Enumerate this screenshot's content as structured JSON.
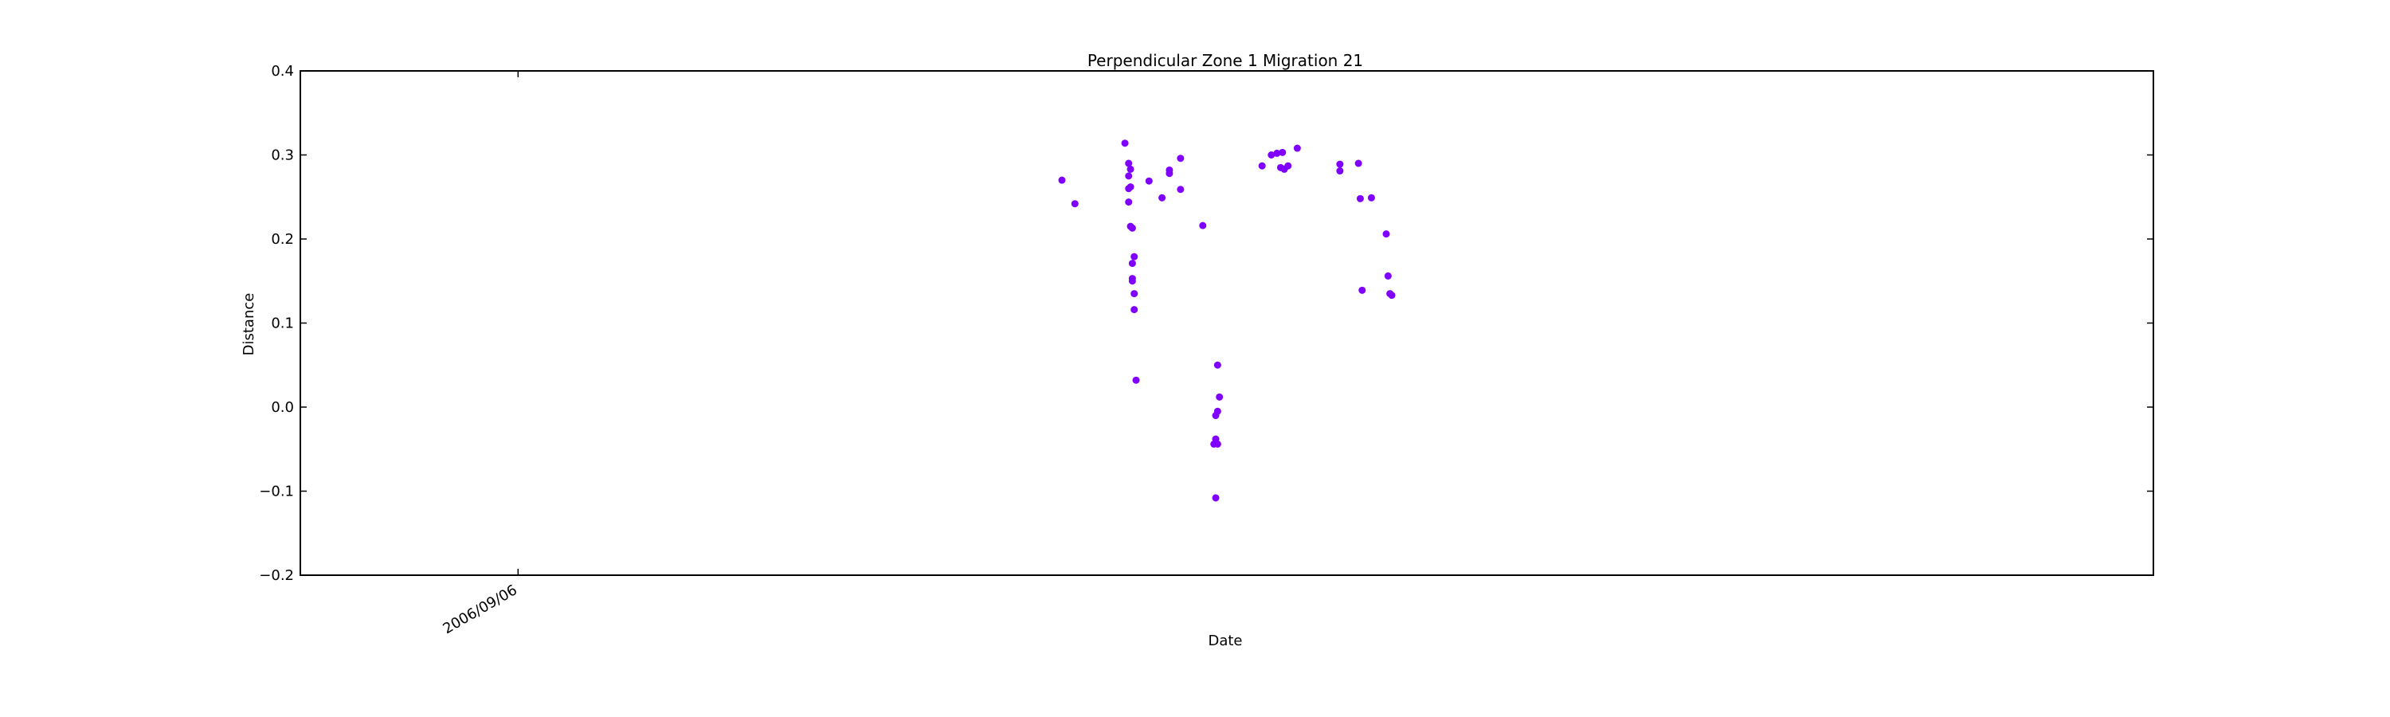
{
  "chart_data": {
    "type": "scatter",
    "title": "Perpendicular Zone 1 Migration 21",
    "xlabel": "Date",
    "ylabel": "Distance",
    "ylim": [
      -0.2,
      0.4
    ],
    "y_ticks": [
      -0.2,
      -0.1,
      0.0,
      0.1,
      0.2,
      0.3,
      0.4
    ],
    "y_tick_labels": [
      "−0.2",
      "−0.1",
      "0.0",
      "0.1",
      "0.2",
      "0.3",
      "0.4"
    ],
    "x_tick_label": "2006/09/06",
    "x_axis_fraction_range": [
      0,
      1
    ],
    "x_tick_fraction": 0.1175,
    "grid": false,
    "marker_color": "#7f00ff",
    "points": [
      {
        "x": 0.411,
        "y": 0.27
      },
      {
        "x": 0.418,
        "y": 0.242
      },
      {
        "x": 0.445,
        "y": 0.314
      },
      {
        "x": 0.447,
        "y": 0.29
      },
      {
        "x": 0.447,
        "y": 0.275
      },
      {
        "x": 0.448,
        "y": 0.283
      },
      {
        "x": 0.447,
        "y": 0.26
      },
      {
        "x": 0.448,
        "y": 0.262
      },
      {
        "x": 0.447,
        "y": 0.244
      },
      {
        "x": 0.448,
        "y": 0.215
      },
      {
        "x": 0.449,
        "y": 0.213
      },
      {
        "x": 0.45,
        "y": 0.179
      },
      {
        "x": 0.449,
        "y": 0.171
      },
      {
        "x": 0.449,
        "y": 0.153
      },
      {
        "x": 0.449,
        "y": 0.15
      },
      {
        "x": 0.45,
        "y": 0.135
      },
      {
        "x": 0.45,
        "y": 0.116
      },
      {
        "x": 0.451,
        "y": 0.032
      },
      {
        "x": 0.458,
        "y": 0.269
      },
      {
        "x": 0.465,
        "y": 0.249
      },
      {
        "x": 0.469,
        "y": 0.282
      },
      {
        "x": 0.469,
        "y": 0.278
      },
      {
        "x": 0.475,
        "y": 0.296
      },
      {
        "x": 0.475,
        "y": 0.259
      },
      {
        "x": 0.487,
        "y": 0.216
      },
      {
        "x": 0.495,
        "y": 0.05
      },
      {
        "x": 0.496,
        "y": 0.012
      },
      {
        "x": 0.495,
        "y": -0.005
      },
      {
        "x": 0.494,
        "y": -0.01
      },
      {
        "x": 0.494,
        "y": -0.038
      },
      {
        "x": 0.493,
        "y": -0.044
      },
      {
        "x": 0.495,
        "y": -0.044
      },
      {
        "x": 0.494,
        "y": -0.108
      },
      {
        "x": 0.519,
        "y": 0.287
      },
      {
        "x": 0.524,
        "y": 0.3
      },
      {
        "x": 0.527,
        "y": 0.302
      },
      {
        "x": 0.53,
        "y": 0.303
      },
      {
        "x": 0.529,
        "y": 0.285
      },
      {
        "x": 0.531,
        "y": 0.283
      },
      {
        "x": 0.533,
        "y": 0.287
      },
      {
        "x": 0.538,
        "y": 0.308
      },
      {
        "x": 0.561,
        "y": 0.289
      },
      {
        "x": 0.561,
        "y": 0.281
      },
      {
        "x": 0.571,
        "y": 0.29
      },
      {
        "x": 0.572,
        "y": 0.248
      },
      {
        "x": 0.573,
        "y": 0.139
      },
      {
        "x": 0.578,
        "y": 0.249
      },
      {
        "x": 0.586,
        "y": 0.206
      },
      {
        "x": 0.587,
        "y": 0.156
      },
      {
        "x": 0.588,
        "y": 0.135
      },
      {
        "x": 0.589,
        "y": 0.133
      }
    ]
  }
}
